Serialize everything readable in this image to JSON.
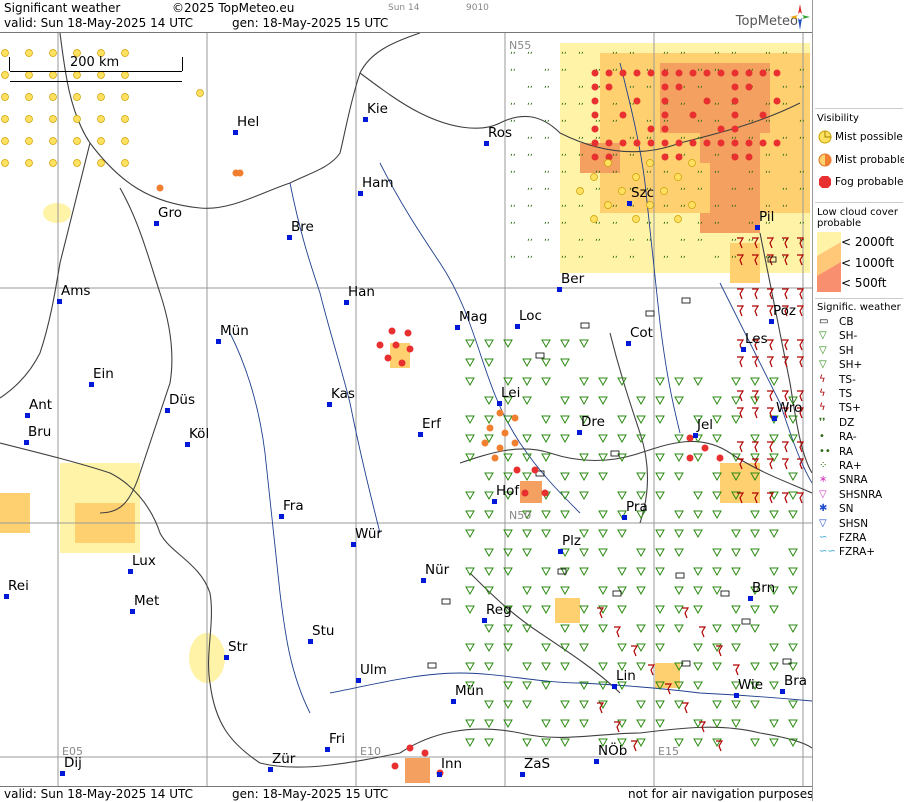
{
  "header": {
    "title": "Significant weather",
    "copyright": "©2025 TopMeteo.eu",
    "valid": "valid:  Sun  18-May-2025  14 UTC",
    "gen": "gen: 18-May-2025 15 UTC",
    "small_day": "Sun 14",
    "small_code": "9010",
    "logo": "TopMeteo"
  },
  "footer": {
    "valid": "valid:  Sun  18-May-2025  14 UTC",
    "gen": "gen: 18-May-2025 15 UTC",
    "note": "not for air navigation purposes"
  },
  "scale": {
    "label": "200 km"
  },
  "grid_labels": {
    "n55": "N55",
    "n50": "N50",
    "e05": "E05",
    "e10": "E10",
    "e15": "E15"
  },
  "cities": [
    {
      "name": "Kie"
    },
    {
      "name": "Hel"
    },
    {
      "name": "Ros"
    },
    {
      "name": "Ham"
    },
    {
      "name": "Gro"
    },
    {
      "name": "Bre"
    },
    {
      "name": "Szc"
    },
    {
      "name": "Pil"
    },
    {
      "name": "Ber"
    },
    {
      "name": "Ams"
    },
    {
      "name": "Han"
    },
    {
      "name": "Mag"
    },
    {
      "name": "Loc"
    },
    {
      "name": "Poz"
    },
    {
      "name": "Mün"
    },
    {
      "name": "Cot"
    },
    {
      "name": "Les"
    },
    {
      "name": "Ein"
    },
    {
      "name": "Kas"
    },
    {
      "name": "Lei"
    },
    {
      "name": "Ant"
    },
    {
      "name": "Düs"
    },
    {
      "name": "Wro"
    },
    {
      "name": "Dre"
    },
    {
      "name": "Erf"
    },
    {
      "name": "Bru"
    },
    {
      "name": "Köl"
    },
    {
      "name": "Jel"
    },
    {
      "name": "Hof"
    },
    {
      "name": "Fra"
    },
    {
      "name": "Pra"
    },
    {
      "name": "Wür"
    },
    {
      "name": "Plz"
    },
    {
      "name": "Lux"
    },
    {
      "name": "Nür"
    },
    {
      "name": "Rei"
    },
    {
      "name": "Met"
    },
    {
      "name": "Brn"
    },
    {
      "name": "Reg"
    },
    {
      "name": "Stu"
    },
    {
      "name": "Str"
    },
    {
      "name": "Ulm"
    },
    {
      "name": "Lin"
    },
    {
      "name": "Mün"
    },
    {
      "name": "Wie"
    },
    {
      "name": "Bra"
    },
    {
      "name": "Fri"
    },
    {
      "name": "NÖb"
    },
    {
      "name": "Dij"
    },
    {
      "name": "Zür"
    },
    {
      "name": "Inn"
    },
    {
      "name": "ZaS"
    }
  ],
  "legend": {
    "visibility_title": "Visibility",
    "mist_possible": "Mist possible",
    "mist_probable": "Mist probable",
    "fog_probable": "Fog probable",
    "low_cloud_title": "Low cloud cover probable",
    "lc_2000": "< 2000ft",
    "lc_1000": "< 1000ft",
    "lc_500": "<   500ft",
    "sig_title": "Signific. weather",
    "items": [
      "CB",
      "SH-",
      "SH",
      "SH+",
      "TS-",
      "TS",
      "TS+",
      "DZ",
      "RA-",
      "RA",
      "RA+",
      "SNRA",
      "SHSNRA",
      "SN",
      "SHSN",
      "FZRA",
      "FZRA+"
    ]
  },
  "colors": {
    "mist": "#ffe060",
    "fog": "#e83030",
    "lc_light": "#fff3a8",
    "lc_mid": "#ffd070",
    "lc_dark": "#f4a060",
    "border": "#404040",
    "river": "#1f3f8f",
    "grid": "#9a9a9a",
    "city": "#0018d8",
    "shower": "#2a8a10",
    "ts": "#b00000"
  }
}
